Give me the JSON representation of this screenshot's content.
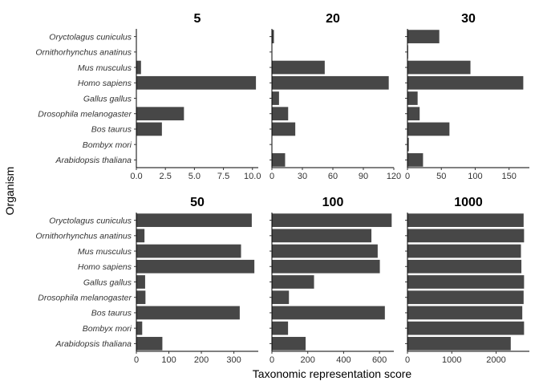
{
  "chart_data": {
    "type": "bar",
    "orientation": "horizontal",
    "xlabel": "Taxonomic representation score",
    "ylabel": "Organism",
    "bar_color": "#474747",
    "grid": false,
    "categories": [
      "Oryctolagus cuniculus",
      "Ornithorhynchus anatinus",
      "Mus musculus",
      "Homo sapiens",
      "Gallus gallus",
      "Drosophila melanogaster",
      "Bos taurus",
      "Bombyx mori",
      "Arabidopsis thaliana"
    ],
    "panels": [
      {
        "title": "5",
        "xlim": [
          0,
          10.5
        ],
        "ticks": [
          0,
          2.5,
          5,
          7.5,
          10
        ],
        "tick_labels": [
          "0.0",
          "2.5",
          "5.0",
          "7.5",
          "10.0"
        ],
        "values": [
          0,
          0,
          0.4,
          10.3,
          0,
          4.1,
          2.2,
          0,
          0
        ]
      },
      {
        "title": "20",
        "xlim": [
          0,
          120
        ],
        "ticks": [
          0,
          30,
          60,
          90,
          120
        ],
        "tick_labels": [
          "0",
          "30",
          "60",
          "90",
          "120"
        ],
        "values": [
          2,
          0,
          52,
          115,
          7,
          16,
          23,
          0,
          13
        ]
      },
      {
        "title": "30",
        "xlim": [
          0,
          180
        ],
        "ticks": [
          0,
          50,
          100,
          150
        ],
        "tick_labels": [
          "0",
          "50",
          "100",
          "150"
        ],
        "values": [
          47,
          1,
          93,
          171,
          15,
          18,
          62,
          2,
          23
        ]
      },
      {
        "title": "50",
        "xlim": [
          0,
          375
        ],
        "ticks": [
          0,
          100,
          200,
          300
        ],
        "tick_labels": [
          "0",
          "100",
          "200",
          "300"
        ],
        "values": [
          355,
          25,
          322,
          363,
          27,
          28,
          318,
          18,
          80
        ]
      },
      {
        "title": "100",
        "xlim": [
          0,
          680
        ],
        "ticks": [
          0,
          200,
          400,
          600
        ],
        "tick_labels": [
          "0",
          "200",
          "400",
          "600"
        ],
        "values": [
          668,
          555,
          590,
          602,
          235,
          95,
          630,
          90,
          188
        ]
      },
      {
        "title": "1000",
        "xlim": [
          0,
          2750
        ],
        "ticks": [
          0,
          1000,
          2000
        ],
        "tick_labels": [
          "0",
          "1000",
          "2000"
        ],
        "values": [
          2620,
          2630,
          2560,
          2570,
          2630,
          2620,
          2590,
          2630,
          2330
        ]
      }
    ]
  }
}
